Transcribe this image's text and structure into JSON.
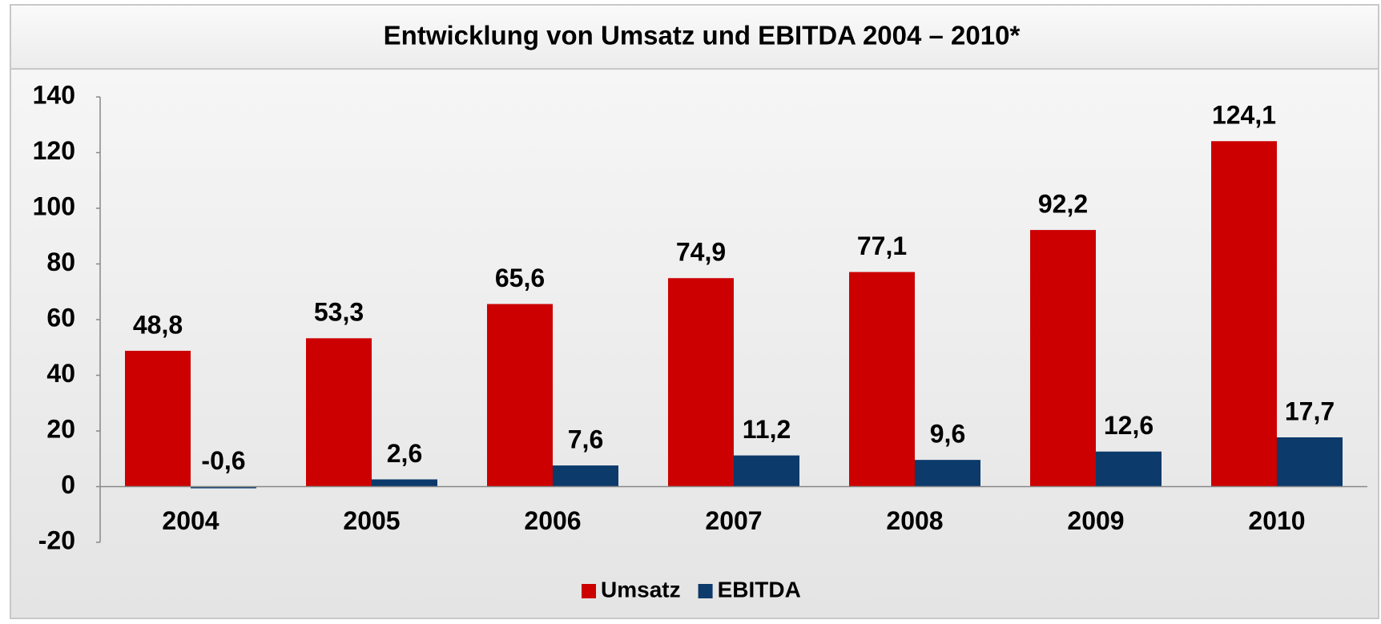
{
  "chart_data": {
    "type": "bar",
    "title": "Entwicklung von Umsatz und EBITDA 2004 – 2010*",
    "categories": [
      "2004",
      "2005",
      "2006",
      "2007",
      "2008",
      "2009",
      "2010"
    ],
    "series": [
      {
        "name": "Umsatz",
        "color": "#cc0000",
        "values": [
          48.8,
          53.3,
          65.6,
          74.9,
          77.1,
          92.2,
          124.1
        ],
        "value_labels": [
          "48,8",
          "53,3",
          "65,6",
          "74,9",
          "77,1",
          "92,2",
          "124,1"
        ]
      },
      {
        "name": "EBITDA",
        "color": "#0b3a6b",
        "values": [
          -0.6,
          2.6,
          7.6,
          11.2,
          9.6,
          12.6,
          17.7
        ],
        "value_labels": [
          "-0,6",
          "2,6",
          "7,6",
          "11,2",
          "9,6",
          "12,6",
          "17,7"
        ]
      }
    ],
    "ylim": [
      -20,
      140
    ],
    "yticks": [
      -20,
      0,
      20,
      40,
      60,
      80,
      100,
      120,
      140
    ],
    "legend": "bottom"
  }
}
